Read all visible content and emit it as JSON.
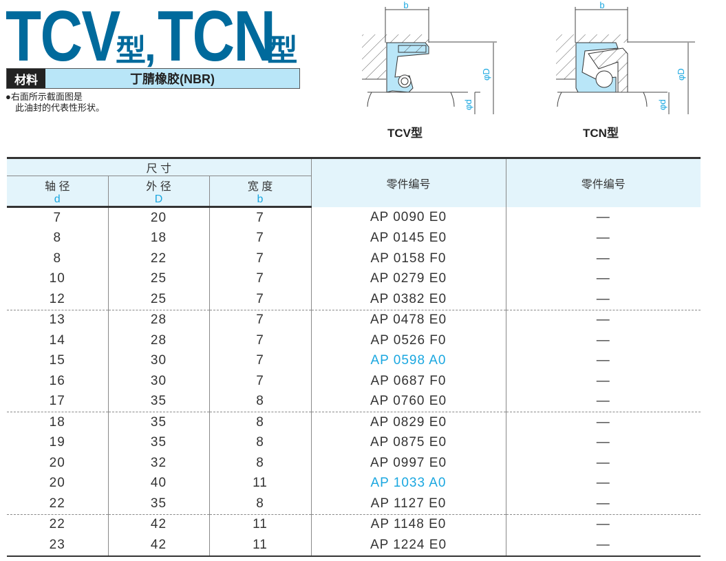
{
  "title": {
    "part1": "TCV",
    "suffix1": "型",
    "comma": ",",
    "part2": "TCN",
    "suffix2": "型"
  },
  "material": {
    "label": "材料",
    "value": "丁腈橡胶(NBR)"
  },
  "note": [
    "●右面所示截面图是",
    "此油封的代表性形状。"
  ],
  "diagrams": [
    {
      "caption": "TCV型",
      "labels": {
        "b": "b",
        "D": "φD",
        "d": "φd"
      }
    },
    {
      "caption": "TCN型",
      "labels": {
        "b": "b",
        "D": "φD",
        "d": "φd"
      }
    }
  ],
  "colors": {
    "brand": "#006a9c",
    "seal": "#b9e6f8",
    "highlight": "#1aa7e0"
  },
  "table": {
    "group_header": "尺 寸",
    "columns": [
      {
        "label": "轴 径",
        "symbol": "d"
      },
      {
        "label": "外 径",
        "symbol": "D"
      },
      {
        "label": "宽 度",
        "symbol": "b"
      },
      {
        "label": "零件编号"
      },
      {
        "label": "零件编号"
      }
    ],
    "rows": [
      {
        "d": "7",
        "D": "20",
        "b": "7",
        "tcv": "AP 0090 E0",
        "tcn": "—"
      },
      {
        "d": "8",
        "D": "18",
        "b": "7",
        "tcv": "AP 0145 E0",
        "tcn": "—"
      },
      {
        "d": "8",
        "D": "22",
        "b": "7",
        "tcv": "AP 0158 F0",
        "tcn": "—"
      },
      {
        "d": "10",
        "D": "25",
        "b": "7",
        "tcv": "AP 0279 E0",
        "tcn": "—"
      },
      {
        "d": "12",
        "D": "25",
        "b": "7",
        "tcv": "AP 0382 E0",
        "tcn": "—"
      },
      {
        "d": "13",
        "D": "28",
        "b": "7",
        "tcv": "AP 0478 E0",
        "tcn": "—"
      },
      {
        "d": "14",
        "D": "28",
        "b": "7",
        "tcv": "AP 0526 F0",
        "tcn": "—"
      },
      {
        "d": "15",
        "D": "30",
        "b": "7",
        "tcv": "AP 0598 A0",
        "tcn": "—",
        "highlight": true
      },
      {
        "d": "16",
        "D": "30",
        "b": "7",
        "tcv": "AP 0687 F0",
        "tcn": "—"
      },
      {
        "d": "17",
        "D": "35",
        "b": "8",
        "tcv": "AP 0760 E0",
        "tcn": "—"
      },
      {
        "d": "18",
        "D": "35",
        "b": "8",
        "tcv": "AP 0829 E0",
        "tcn": "—"
      },
      {
        "d": "19",
        "D": "35",
        "b": "8",
        "tcv": "AP 0875 E0",
        "tcn": "—"
      },
      {
        "d": "20",
        "D": "32",
        "b": "8",
        "tcv": "AP 0997 E0",
        "tcn": "—"
      },
      {
        "d": "20",
        "D": "40",
        "b": "11",
        "tcv": "AP 1033 A0",
        "tcn": "—",
        "highlight": true
      },
      {
        "d": "22",
        "D": "35",
        "b": "8",
        "tcv": "AP 1127 E0",
        "tcn": "—"
      },
      {
        "d": "22",
        "D": "42",
        "b": "11",
        "tcv": "AP 1148 E0",
        "tcn": "—"
      },
      {
        "d": "23",
        "D": "42",
        "b": "11",
        "tcv": "AP 1224 E0",
        "tcn": "—"
      }
    ]
  }
}
